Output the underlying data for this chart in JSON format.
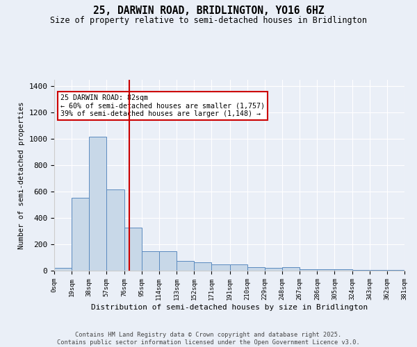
{
  "title": "25, DARWIN ROAD, BRIDLINGTON, YO16 6HZ",
  "subtitle": "Size of property relative to semi-detached houses in Bridlington",
  "xlabel": "Distribution of semi-detached houses by size in Bridlington",
  "ylabel": "Number of semi-detached properties",
  "bar_values": [
    20,
    555,
    1020,
    615,
    325,
    150,
    150,
    75,
    65,
    50,
    50,
    25,
    20,
    25,
    10,
    10,
    10,
    5,
    5,
    5
  ],
  "bin_labels": [
    "0sqm",
    "19sqm",
    "38sqm",
    "57sqm",
    "76sqm",
    "95sqm",
    "114sqm",
    "133sqm",
    "152sqm",
    "171sqm",
    "191sqm",
    "210sqm",
    "229sqm",
    "248sqm",
    "267sqm",
    "286sqm",
    "305sqm",
    "324sqm",
    "343sqm",
    "362sqm",
    "381sqm"
  ],
  "bin_edges": [
    0,
    19,
    38,
    57,
    76,
    95,
    114,
    133,
    152,
    171,
    191,
    210,
    229,
    248,
    267,
    286,
    305,
    324,
    343,
    362,
    381
  ],
  "bar_color": "#c8d8e8",
  "bar_edge_color": "#5a8abf",
  "vline_x": 82,
  "vline_color": "#cc0000",
  "annotation_text": "25 DARWIN ROAD: 82sqm\n← 60% of semi-detached houses are smaller (1,757)\n39% of semi-detached houses are larger (1,148) →",
  "annotation_box_color": "#ffffff",
  "annotation_box_edge": "#cc0000",
  "ylim": [
    0,
    1450
  ],
  "background_color": "#eaeff7",
  "footer_text": "Contains HM Land Registry data © Crown copyright and database right 2025.\nContains public sector information licensed under the Open Government Licence v3.0."
}
